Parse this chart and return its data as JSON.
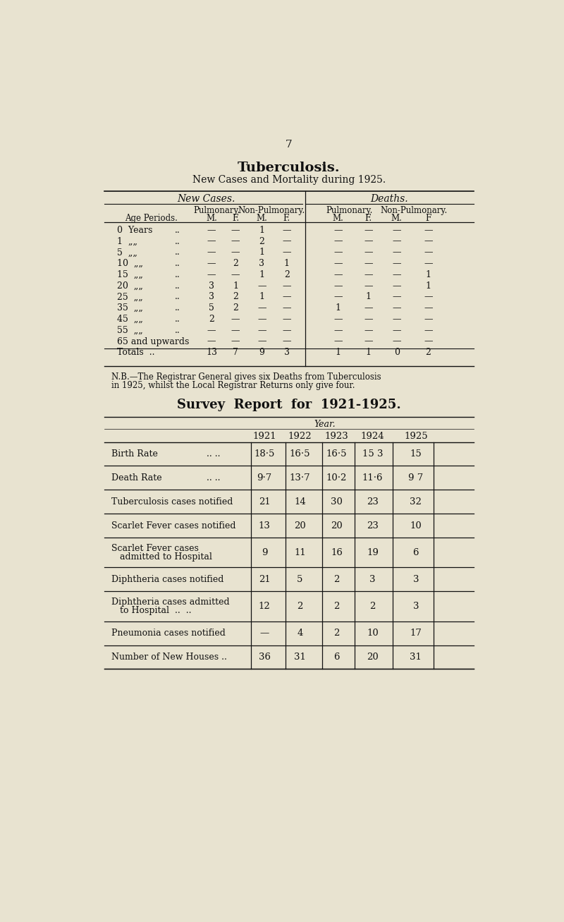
{
  "page_number": "7",
  "title": "Tuberculosis.",
  "subtitle": "New Cases and Mortality during 1925.",
  "bg_color": "#e8e3d0",
  "text_color": "#111111",
  "table1_new_cases_header": "New Cases.",
  "table1_deaths_header": "Deaths.",
  "table1_pulmonary": "Pulmonary.",
  "table1_non_pulmonary": "Non-Pulmonary.",
  "table1_age_label": "Age Periods.",
  "table1_col_headers": [
    "M.",
    "F.",
    "M.",
    "F.",
    "M.",
    "F.",
    "M.",
    "F"
  ],
  "table1_rows": [
    [
      "0  Years",
      "..",
      "—",
      "—",
      "1",
      "—",
      "—",
      "—",
      "—",
      "—"
    ],
    [
      "1  „„",
      "..",
      "—",
      "—",
      "2",
      "—",
      "—",
      "—",
      "—",
      "—"
    ],
    [
      "5  „„",
      "..",
      "—",
      "—",
      "1",
      "—",
      "—",
      "—",
      "—",
      "—"
    ],
    [
      "10  „„",
      "..",
      "—",
      "2",
      "3",
      "1",
      "—",
      "—",
      "—",
      "—"
    ],
    [
      "15  „„",
      "..",
      "—",
      "—",
      "1",
      "2",
      "—",
      "—",
      "—",
      "1"
    ],
    [
      "20  „„",
      "..",
      "3",
      "1",
      "—",
      "—",
      "—",
      "—",
      "—",
      "1"
    ],
    [
      "25  „„",
      "..",
      "3",
      "2",
      "1",
      "—",
      "—",
      "1",
      "—",
      "—"
    ],
    [
      "35  „„",
      "..",
      "5",
      "2",
      "—",
      "—",
      "1",
      "—",
      "—",
      "—"
    ],
    [
      "45  „„",
      "..",
      "2",
      "—",
      "—",
      "—",
      "—",
      "—",
      "—",
      "—"
    ],
    [
      "55  „„",
      "..",
      "—",
      "—",
      "—",
      "—",
      "—",
      "—",
      "—",
      "—"
    ],
    [
      "65 and upwards",
      "",
      "—",
      "—",
      "—",
      "—",
      "—",
      "—",
      "—",
      "—"
    ],
    [
      "Totals  ..",
      "",
      "13",
      "7",
      "9",
      "3",
      "1",
      "1",
      "0",
      "2"
    ]
  ],
  "nb_line1": "N.B.—The Registrar General gives six Deaths from Tuberculosis",
  "nb_line2": "in 1925, whilst the Local Registrar Returns only give four.",
  "survey_title": "Survey  Report  for  1921-1925.",
  "year_label": "Year.",
  "years": [
    "1921",
    "1922",
    "1923",
    "1924",
    "1925"
  ],
  "survey_rows": [
    {
      "label": "Birth Rate",
      "label2": ".. ..",
      "vals": [
        "18·5",
        "16·5",
        "16·5",
        "15 3",
        "15"
      ]
    },
    {
      "label": "Death Rate",
      "label2": ".. ..",
      "vals": [
        "9·7",
        "13·7",
        "10·2",
        "11·6",
        "9 7"
      ]
    },
    {
      "label": "Tuberculosis cases notified",
      "label2": "",
      "vals": [
        "21",
        "14",
        "30",
        "23",
        "32"
      ]
    },
    {
      "label": "Scarlet Fever cases notified",
      "label2": "",
      "vals": [
        "13",
        "20",
        "20",
        "23",
        "10"
      ]
    },
    {
      "label": "Scarlet Fever cases\nadmitted to Hospital",
      "label2": "",
      "vals": [
        "9",
        "11",
        "16",
        "19",
        "6"
      ]
    },
    {
      "label": "Diphtheria cases notified",
      "label2": "",
      "vals": [
        "21",
        "5",
        "2",
        "3",
        "3"
      ]
    },
    {
      "label": "Diphtheria cases admitted\nto Hospital  ..  ..",
      "label2": "",
      "vals": [
        "12",
        "2",
        "2",
        "2",
        "3"
      ]
    },
    {
      "label": "Pneumonia cases notified",
      "label2": "",
      "vals": [
        "—",
        "4",
        "2",
        "10",
        "17"
      ]
    },
    {
      "label": "Number of New Houses ..",
      "label2": "",
      "vals": [
        "36",
        "31",
        "6",
        "20",
        "31"
      ]
    }
  ]
}
